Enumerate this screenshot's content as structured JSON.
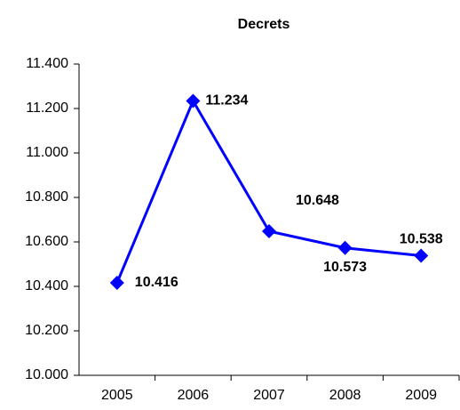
{
  "chart_data": {
    "type": "line",
    "title": "Decrets",
    "categories": [
      "2005",
      "2006",
      "2007",
      "2008",
      "2009"
    ],
    "series": [
      {
        "name": "Decrets",
        "color": "#0000ff",
        "values": [
          10416,
          11234,
          10648,
          10573,
          10538
        ],
        "value_labels": [
          "10.416",
          "11.234",
          "10.648",
          "10.573",
          "10.538"
        ]
      }
    ],
    "ylim": [
      10000,
      11400
    ],
    "yticks": [
      {
        "value": 10000,
        "label": "10.000"
      },
      {
        "value": 10200,
        "label": "10.200"
      },
      {
        "value": 10400,
        "label": "10.400"
      },
      {
        "value": 10600,
        "label": "10.600"
      },
      {
        "value": 10800,
        "label": "10.800"
      },
      {
        "value": 11000,
        "label": "11.000"
      },
      {
        "value": 11200,
        "label": "11.200"
      },
      {
        "value": 11400,
        "label": "11.400"
      }
    ],
    "grid": false
  }
}
